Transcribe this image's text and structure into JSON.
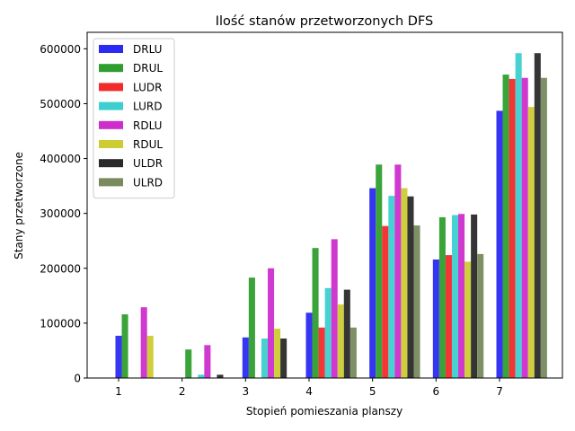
{
  "chart_data": {
    "type": "bar",
    "title": "Ilość stanów przetworzonych DFS",
    "xlabel": "Stopień pomieszania planszy",
    "ylabel": "Stany przetworzone",
    "categories": [
      "1",
      "2",
      "3",
      "4",
      "5",
      "6",
      "7"
    ],
    "yticks": [
      0,
      100000,
      200000,
      300000,
      400000,
      500000,
      600000
    ],
    "ytick_labels": [
      "0",
      "100000",
      "200000",
      "300000",
      "400000",
      "500000",
      "600000"
    ],
    "ylim": [
      0,
      630000
    ],
    "grid": false,
    "legend_position": "top-left",
    "series": [
      {
        "name": "DRLU",
        "color": "#2a2af2",
        "values": [
          77000,
          0,
          74000,
          119000,
          346000,
          216000,
          487000
        ]
      },
      {
        "name": "DRUL",
        "color": "#2f9e2f",
        "values": [
          116000,
          52000,
          183000,
          237000,
          389000,
          293000,
          553000
        ]
      },
      {
        "name": "LUDR",
        "color": "#f22a2a",
        "values": [
          0,
          0,
          0,
          92000,
          277000,
          224000,
          545000
        ]
      },
      {
        "name": "LURD",
        "color": "#3dcfcf",
        "values": [
          0,
          6000,
          72000,
          164000,
          332000,
          297000,
          592000
        ]
      },
      {
        "name": "RDLU",
        "color": "#cc2ecc",
        "values": [
          129000,
          60000,
          200000,
          253000,
          389000,
          299000,
          547000
        ]
      },
      {
        "name": "RDUL",
        "color": "#cccc33",
        "values": [
          77000,
          0,
          90000,
          134000,
          346000,
          212000,
          494000
        ]
      },
      {
        "name": "ULDR",
        "color": "#2a2a2a",
        "values": [
          0,
          6000,
          72000,
          161000,
          331000,
          298000,
          592000
        ]
      },
      {
        "name": "ULRD",
        "color": "#788a5e",
        "values": [
          0,
          0,
          0,
          92000,
          278000,
          226000,
          547000
        ]
      }
    ]
  }
}
